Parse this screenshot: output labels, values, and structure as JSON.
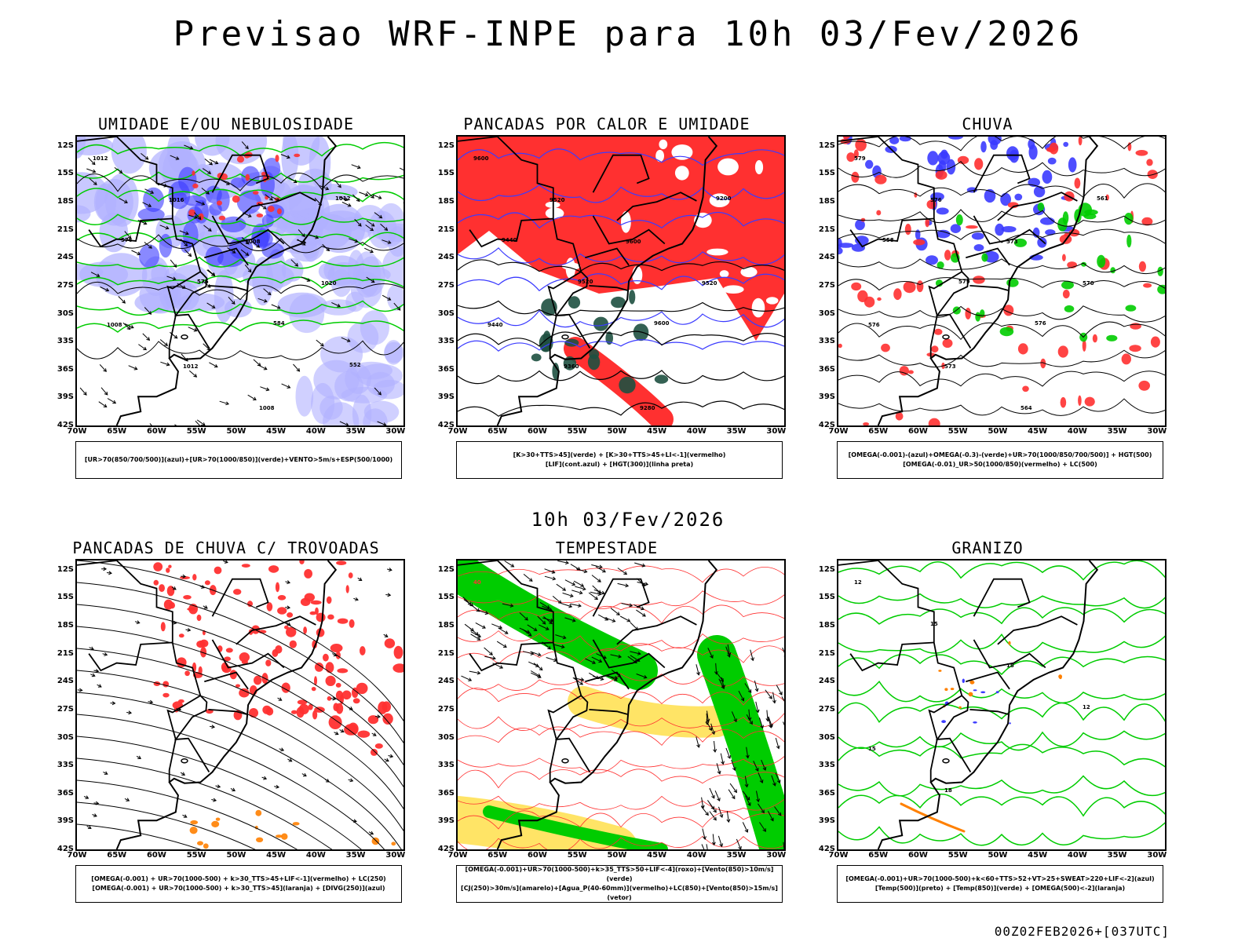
{
  "title": "Previsao WRF-INPE  para 10h 03/Fev/2026",
  "mid_title": "10h 03/Fev/2026",
  "footer": "00Z02FEB2026+[037UTC]",
  "axes": {
    "lat_labels": [
      "12S",
      "15S",
      "18S",
      "21S",
      "24S",
      "27S",
      "30S",
      "33S",
      "36S",
      "39S",
      "42S"
    ],
    "lon_labels": [
      "70W",
      "65W",
      "60W",
      "55W",
      "50W",
      "45W",
      "40W",
      "35W",
      "30W"
    ]
  },
  "colors": {
    "blue": "#3b3bff",
    "green": "#00cc00",
    "red": "#ff3030",
    "lavender": "#b0b0ff",
    "yellow": "#e6d200",
    "orange": "#ff8000",
    "darkgreen": "#1e5040"
  },
  "panels": [
    {
      "title": "UMIDADE E/OU NEBULOSIDADE",
      "legend": [
        "[UR>70(850/700/500)](azul)+[UR>70(1000/850)](verde)+VENTO>5m/s+ESP(500/1000)"
      ],
      "contour_labels": [
        "1012",
        "1016",
        "1008",
        "1020",
        "1008",
        "1012",
        "1008",
        "1012",
        "576",
        "576",
        "584",
        "552"
      ]
    },
    {
      "title": "PANCADAS POR CALOR E UMIDADE",
      "legend": [
        "[K>30+TTS>45](verde) + [K>30+TTS>45+LI<-1](vermelho)",
        "[LIF](cont.azul) + [HGT(300)](linha preta)"
      ],
      "contour_labels": [
        "9600",
        "9520",
        "9600",
        "9520",
        "9440",
        "9360",
        "9280",
        "9200",
        "9440",
        "9520",
        "9600"
      ]
    },
    {
      "title": "CHUVA",
      "legend": [
        "[OMEGA(-0.001)-(azul)+OMEGA(-0.3)-(verde)+UR>70(1000/850/700/500)] + HGT(500)",
        "[OMEGA(-0.01)_UR>50(1000/850)(vermelho) + LC(500)"
      ],
      "contour_labels": [
        "579",
        "576",
        "573",
        "570",
        "576",
        "573",
        "564",
        "561",
        "558",
        "579",
        "576"
      ]
    },
    {
      "title": "PANCADAS DE CHUVA C/ TROVOADAS",
      "legend": [
        "[OMEGA(-0.001) + UR>70(1000-500) + k>30_TTS>45+LIF<-1](vermelho) + LC(250)",
        "[OMEGA(-0.001) + UR>70(1000-500) + k>30_TTS>45](laranja) + [DIVG(250)](azul)"
      ],
      "contour_labels": []
    },
    {
      "title": "TEMPESTADE",
      "legend": [
        "[OMEGA(-0.001)+UR>70(1000-500)+k>35_TTS>50+LIF<-4](roxo)+[Vento(850)>10m/s](verde)",
        "[CJ(250)>30m/s](amarelo)+[Agua_P(40-60mm)](vermelho)+LC(850)+[Vento(850)>15m/s](vetor)"
      ],
      "contour_labels": [
        "40"
      ]
    },
    {
      "title": "GRANIZO",
      "legend": [
        "[OMEGA(-0.001)+UR>70(1000-500)+k<60+TTS>52+VT>25+SWEAT>220+LIF<-2](azul)",
        "[Temp(500)](preto) + [Temp(850)](verde) + [OMEGA(500)<-2](laranja)"
      ],
      "contour_labels": [
        "12",
        "15",
        "18",
        "12",
        "15",
        "18"
      ]
    }
  ]
}
